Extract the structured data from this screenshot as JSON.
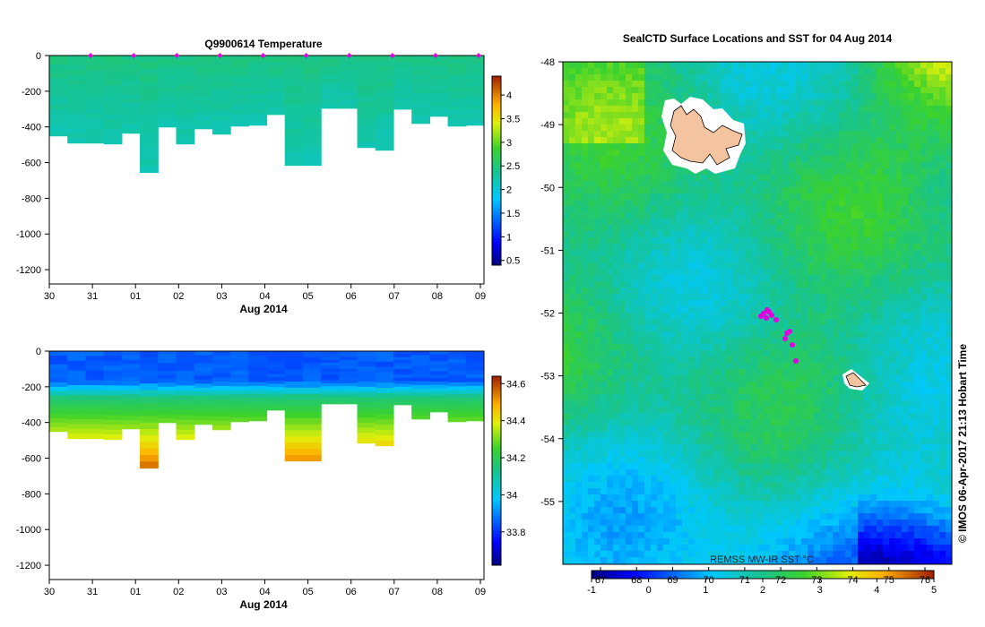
{
  "chart_data": [
    {
      "type": "heatmap",
      "title": "Q9900614  Temperature",
      "xlabel": "Aug 2014",
      "x_ticks": [
        "30",
        "31",
        "01",
        "02",
        "03",
        "04",
        "05",
        "06",
        "07",
        "08",
        "09"
      ],
      "y_ticks": [
        0,
        -200,
        -400,
        -600,
        -800,
        -1000,
        -1200
      ],
      "ylim": [
        -1280,
        0
      ],
      "colorbar_ticks": [
        4,
        3.5,
        3,
        2.5,
        2,
        1.5,
        1,
        0.5
      ],
      "colorbar_range": [
        0.4,
        4.4
      ],
      "profile_depths": [
        -450,
        -490,
        -490,
        -495,
        -435,
        -655,
        -400,
        -495,
        -410,
        -440,
        -395,
        -390,
        -330,
        -615,
        -615,
        -295,
        -295,
        -515,
        -530,
        -300,
        -380,
        -340,
        -395,
        -390
      ],
      "surface_temperature": 2.45,
      "deep_temperature": 2.2,
      "colors": {
        "top": "#19c48a",
        "mid": "#21c46a",
        "deep": "#1fc43d",
        "marker": "#e000e0"
      }
    },
    {
      "type": "heatmap",
      "title": "",
      "xlabel": "Aug 2014",
      "x_ticks": [
        "30",
        "31",
        "01",
        "02",
        "03",
        "04",
        "05",
        "06",
        "07",
        "08",
        "09"
      ],
      "y_ticks": [
        0,
        -200,
        -400,
        -600,
        -800,
        -1000,
        -1200
      ],
      "ylim": [
        -1280,
        0
      ],
      "colorbar_ticks": [
        34.6,
        34.4,
        34.2,
        34,
        33.8
      ],
      "colorbar_range": [
        33.62,
        34.64
      ],
      "profile_depths": [
        -450,
        -490,
        -490,
        -495,
        -435,
        -655,
        -400,
        -495,
        -410,
        -440,
        -395,
        -390,
        -330,
        -615,
        -615,
        -295,
        -295,
        -515,
        -530,
        -300,
        -380,
        -340,
        -395,
        -390
      ],
      "surface_salinity": 33.85,
      "deep_salinity": 34.55
    },
    {
      "type": "heatmap",
      "title": "SealCTD Surface Locations and SST for 04 Aug 2014",
      "y_ticks": [
        -48,
        -49,
        -50,
        -51,
        -52,
        -53,
        -54,
        -55
      ],
      "ylim": [
        -56,
        -48
      ],
      "colorbar_label": "REMSS MW-IR SST °C",
      "colorbar_top_ticks": [
        "67",
        "68",
        "69",
        "70",
        "71",
        "72",
        "73",
        "74",
        "75",
        "76"
      ],
      "colorbar_bottom_ticks": [
        -1,
        0,
        1,
        2,
        3,
        4,
        5
      ],
      "colorbar_range": [
        -1,
        5
      ],
      "credit": "© IMOS 06-Apr-2017 21:13 Hobart Time",
      "colors": {
        "land": "#f4c4a0",
        "marker": "#e000e0"
      }
    }
  ]
}
